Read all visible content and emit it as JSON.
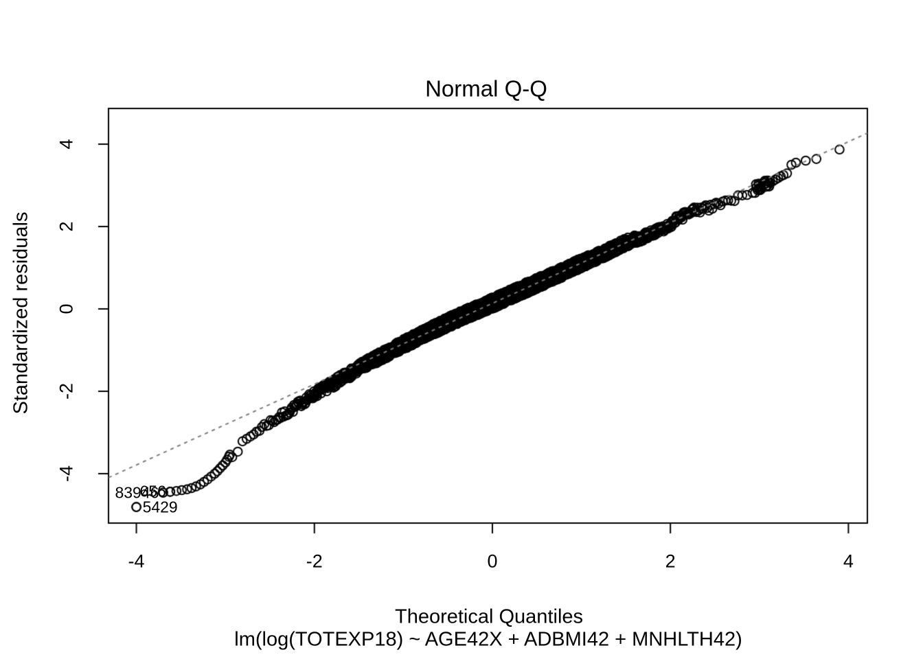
{
  "figure": {
    "title": "Normal Q-Q",
    "x_axis_label": "Theoretical Quantiles",
    "y_axis_label": "Standardized residuals",
    "caption": "lm(log(TOTEXP18) ~ AGE42X + ADBMI42 + MNHLTH42)"
  },
  "colors": {
    "background": "#ffffff",
    "points": "#000000",
    "text": "#000000",
    "box": "#000000",
    "reference_line": "#7d7d7d"
  },
  "chart_data": {
    "type": "scatter",
    "subtype": "normal-qq-residual-plot",
    "title": "Normal Q-Q",
    "xlabel": "Theoretical Quantiles",
    "ylabel": "Standardized residuals",
    "model_formula": "lm(log(TOTEXP18) ~ AGE42X + ADBMI42 + MNHLTH42)",
    "grid": false,
    "legend": false,
    "x_ticks": [
      -4,
      -2,
      0,
      2,
      4
    ],
    "y_ticks": [
      -4,
      -2,
      0,
      2,
      4
    ],
    "xlim": [
      -4.313,
      4.213
    ],
    "ylim": [
      -5.2,
      4.867
    ],
    "marker": {
      "shape": "open-circle",
      "radius_px": 6.3,
      "stroke_px": 2
    },
    "reference_line": {
      "style": "dotted",
      "slope": 0.981,
      "intercept": 0.135,
      "color": "#7d7d7d"
    },
    "band_point_count": 2600,
    "band_curve": [
      [
        -2.95,
        -3.5
      ],
      [
        -2.85,
        -3.35
      ],
      [
        -2.75,
        -3.19
      ],
      [
        -2.65,
        -3.04
      ],
      [
        -2.55,
        -2.88
      ],
      [
        -2.45,
        -2.73
      ],
      [
        -2.35,
        -2.58
      ],
      [
        -2.25,
        -2.43
      ],
      [
        -2.15,
        -2.28
      ],
      [
        -2.05,
        -2.15
      ],
      [
        -1.95,
        -2.0
      ],
      [
        -1.85,
        -1.87
      ],
      [
        -1.7,
        -1.67
      ],
      [
        -1.5,
        -1.44
      ],
      [
        -1.25,
        -1.15
      ],
      [
        -1.0,
        -0.86
      ],
      [
        -0.75,
        -0.59
      ],
      [
        -0.5,
        -0.33
      ],
      [
        -0.25,
        -0.09
      ],
      [
        0.0,
        0.14
      ],
      [
        0.25,
        0.38
      ],
      [
        0.5,
        0.62
      ],
      [
        0.75,
        0.86
      ],
      [
        1.0,
        1.11
      ],
      [
        1.25,
        1.35
      ],
      [
        1.5,
        1.6
      ],
      [
        1.75,
        1.84
      ],
      [
        2.0,
        2.07
      ],
      [
        2.25,
        2.3
      ],
      [
        2.5,
        2.52
      ],
      [
        2.7,
        2.69
      ],
      [
        2.85,
        2.81
      ],
      [
        3.0,
        2.94
      ],
      [
        3.1,
        3.02
      ]
    ],
    "lower_tail_points": [
      [
        -4.0,
        -4.81
      ],
      [
        -3.7,
        -4.46
      ],
      [
        -3.62,
        -4.44
      ],
      [
        -3.55,
        -4.42
      ],
      [
        -3.49,
        -4.4
      ],
      [
        -3.43,
        -4.38
      ],
      [
        -3.38,
        -4.35
      ],
      [
        -3.33,
        -4.31
      ],
      [
        -3.28,
        -4.26
      ],
      [
        -3.24,
        -4.2
      ],
      [
        -3.2,
        -4.14
      ],
      [
        -3.16,
        -4.07
      ],
      [
        -3.12,
        -4.0
      ],
      [
        -3.09,
        -3.94
      ],
      [
        -3.06,
        -3.87
      ],
      [
        -3.03,
        -3.8
      ],
      [
        -3.0,
        -3.73
      ],
      [
        -2.98,
        -3.66
      ],
      [
        -2.96,
        -3.59
      ],
      [
        -2.95,
        -3.54
      ]
    ],
    "upper_tail_points": [
      [
        3.12,
        3.06
      ],
      [
        3.15,
        3.1
      ],
      [
        3.18,
        3.14
      ],
      [
        3.21,
        3.18
      ],
      [
        3.24,
        3.22
      ],
      [
        3.27,
        3.25
      ],
      [
        3.31,
        3.29
      ],
      [
        3.36,
        3.5
      ],
      [
        3.41,
        3.55
      ],
      [
        3.52,
        3.6
      ],
      [
        3.64,
        3.64
      ],
      [
        3.9,
        3.87
      ]
    ],
    "upper_blob": {
      "count": 28,
      "q_min": 2.95,
      "q_max": 3.13,
      "v_base": 2.92,
      "slope": 0.9,
      "spread": 0.22
    },
    "outliers": [
      {
        "label": "83946",
        "q": -3.7,
        "v": -4.46,
        "label_side": "left"
      },
      {
        "label": "656",
        "q": -3.62,
        "v": -4.44,
        "label_side": "left"
      },
      {
        "label": "5429",
        "q": -4.0,
        "v": -4.81,
        "label_side": "right"
      }
    ]
  }
}
